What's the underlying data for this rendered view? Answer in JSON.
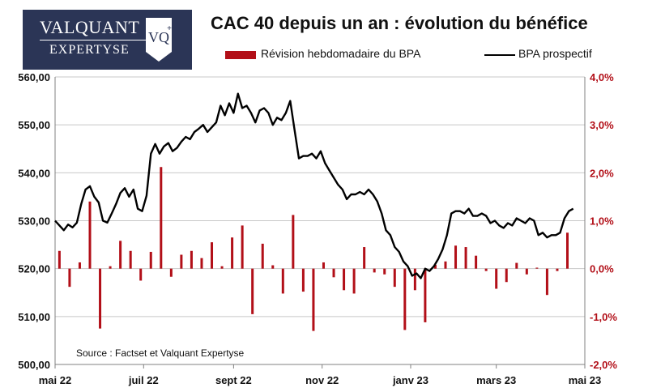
{
  "logo": {
    "line1": "VALQUANT",
    "line2": "EXPERTYSE",
    "mark": "VQ+"
  },
  "chart_data": {
    "type": "bar+line",
    "title": "CAC 40 depuis un an : évolution du bénéfice",
    "legend": [
      {
        "label": "Révision hebdomadaire du BPA",
        "color": "#b20f18",
        "kind": "bar"
      },
      {
        "label": "BPA prospectif",
        "color": "#000000",
        "kind": "line"
      }
    ],
    "legend_position": "top",
    "source": "Source : Factset et Valquant Expertyse",
    "x_range": [
      "2022-05-01",
      "2023-05-01"
    ],
    "x_ticks": [
      {
        "label": "mai 22",
        "date": "2022-05-01"
      },
      {
        "label": "juil 22",
        "date": "2022-07-01"
      },
      {
        "label": "sept 22",
        "date": "2022-09-01"
      },
      {
        "label": "nov 22",
        "date": "2022-11-01"
      },
      {
        "label": "janv 23",
        "date": "2023-01-01"
      },
      {
        "label": "mars 23",
        "date": "2023-03-01"
      },
      {
        "label": "mai 23",
        "date": "2023-05-01"
      }
    ],
    "y_left": {
      "min": 500,
      "max": 560,
      "ticks": [
        "500,00",
        "510,00",
        "520,00",
        "530,00",
        "540,00",
        "550,00",
        "560,00"
      ]
    },
    "y_right": {
      "min": -2.0,
      "max": 4.0,
      "ticks": [
        "-2,0%",
        "-1,0%",
        "0,0%",
        "1,0%",
        "2,0%",
        "3,0%",
        "4,0%"
      ],
      "color": "#b20f18"
    },
    "grid": "horizontal",
    "bars": [
      [
        "2022-05-04",
        0.37
      ],
      [
        "2022-05-11",
        -0.38
      ],
      [
        "2022-05-18",
        0.13
      ],
      [
        "2022-05-25",
        1.4
      ],
      [
        "2022-06-01",
        -1.25
      ],
      [
        "2022-06-08",
        0.05
      ],
      [
        "2022-06-15",
        0.58
      ],
      [
        "2022-06-22",
        0.37
      ],
      [
        "2022-06-29",
        -0.25
      ],
      [
        "2022-07-06",
        0.35
      ],
      [
        "2022-07-13",
        2.12
      ],
      [
        "2022-07-20",
        -0.17
      ],
      [
        "2022-07-27",
        0.29
      ],
      [
        "2022-08-03",
        0.37
      ],
      [
        "2022-08-10",
        0.22
      ],
      [
        "2022-08-17",
        0.55
      ],
      [
        "2022-08-24",
        0.05
      ],
      [
        "2022-08-31",
        0.65
      ],
      [
        "2022-09-07",
        0.9
      ],
      [
        "2022-09-14",
        -0.95
      ],
      [
        "2022-09-21",
        0.52
      ],
      [
        "2022-09-28",
        0.07
      ],
      [
        "2022-10-05",
        -0.52
      ],
      [
        "2022-10-12",
        1.12
      ],
      [
        "2022-10-19",
        -0.48
      ],
      [
        "2022-10-26",
        -1.3
      ],
      [
        "2022-11-02",
        0.13
      ],
      [
        "2022-11-09",
        -0.18
      ],
      [
        "2022-11-16",
        -0.45
      ],
      [
        "2022-11-23",
        -0.52
      ],
      [
        "2022-11-30",
        0.45
      ],
      [
        "2022-12-07",
        -0.08
      ],
      [
        "2022-12-14",
        -0.12
      ],
      [
        "2022-12-21",
        -0.38
      ],
      [
        "2022-12-28",
        -1.28
      ],
      [
        "2023-01-04",
        -0.45
      ],
      [
        "2023-01-11",
        -1.12
      ],
      [
        "2023-01-18",
        0.08
      ],
      [
        "2023-01-25",
        0.15
      ],
      [
        "2023-02-01",
        0.48
      ],
      [
        "2023-02-08",
        0.45
      ],
      [
        "2023-02-15",
        0.27
      ],
      [
        "2023-02-22",
        -0.05
      ],
      [
        "2023-03-01",
        -0.42
      ],
      [
        "2023-03-08",
        -0.28
      ],
      [
        "2023-03-15",
        0.12
      ],
      [
        "2023-03-22",
        -0.12
      ],
      [
        "2023-03-29",
        0.02
      ],
      [
        "2023-04-05",
        -0.55
      ],
      [
        "2023-04-12",
        -0.05
      ],
      [
        "2023-04-19",
        0.75
      ]
    ],
    "line": [
      [
        "2022-05-01",
        530.0
      ],
      [
        "2022-05-04",
        529.0
      ],
      [
        "2022-05-07",
        528.0
      ],
      [
        "2022-05-10",
        529.2
      ],
      [
        "2022-05-13",
        528.6
      ],
      [
        "2022-05-16",
        529.6
      ],
      [
        "2022-05-19",
        533.5
      ],
      [
        "2022-05-22",
        536.5
      ],
      [
        "2022-05-25",
        537.2
      ],
      [
        "2022-05-28",
        535.0
      ],
      [
        "2022-05-31",
        533.8
      ],
      [
        "2022-06-03",
        530.0
      ],
      [
        "2022-06-06",
        529.6
      ],
      [
        "2022-06-09",
        531.5
      ],
      [
        "2022-06-12",
        533.5
      ],
      [
        "2022-06-15",
        535.8
      ],
      [
        "2022-06-18",
        536.8
      ],
      [
        "2022-06-21",
        535.0
      ],
      [
        "2022-06-24",
        536.5
      ],
      [
        "2022-06-27",
        532.5
      ],
      [
        "2022-06-30",
        532.0
      ],
      [
        "2022-07-03",
        535.2
      ],
      [
        "2022-07-06",
        544.0
      ],
      [
        "2022-07-09",
        546.0
      ],
      [
        "2022-07-12",
        544.0
      ],
      [
        "2022-07-15",
        545.5
      ],
      [
        "2022-07-18",
        546.2
      ],
      [
        "2022-07-21",
        544.5
      ],
      [
        "2022-07-24",
        545.2
      ],
      [
        "2022-07-27",
        546.5
      ],
      [
        "2022-07-30",
        547.5
      ],
      [
        "2022-08-02",
        547.0
      ],
      [
        "2022-08-05",
        548.5
      ],
      [
        "2022-08-08",
        549.2
      ],
      [
        "2022-08-11",
        550.0
      ],
      [
        "2022-08-14",
        548.5
      ],
      [
        "2022-08-17",
        549.5
      ],
      [
        "2022-08-20",
        550.5
      ],
      [
        "2022-08-23",
        554.0
      ],
      [
        "2022-08-26",
        552.0
      ],
      [
        "2022-08-29",
        554.5
      ],
      [
        "2022-09-01",
        552.5
      ],
      [
        "2022-09-04",
        556.5
      ],
      [
        "2022-09-07",
        553.5
      ],
      [
        "2022-09-10",
        554.0
      ],
      [
        "2022-09-13",
        552.5
      ],
      [
        "2022-09-16",
        550.5
      ],
      [
        "2022-09-19",
        553.0
      ],
      [
        "2022-09-22",
        553.5
      ],
      [
        "2022-09-25",
        552.5
      ],
      [
        "2022-09-28",
        550.0
      ],
      [
        "2022-10-01",
        551.5
      ],
      [
        "2022-10-04",
        551.0
      ],
      [
        "2022-10-07",
        552.5
      ],
      [
        "2022-10-10",
        555.0
      ],
      [
        "2022-10-13",
        549.0
      ],
      [
        "2022-10-16",
        543.0
      ],
      [
        "2022-10-19",
        543.5
      ],
      [
        "2022-10-22",
        543.5
      ],
      [
        "2022-10-25",
        544.0
      ],
      [
        "2022-10-28",
        543.0
      ],
      [
        "2022-10-31",
        544.5
      ],
      [
        "2022-11-03",
        542.0
      ],
      [
        "2022-11-06",
        540.5
      ],
      [
        "2022-11-09",
        539.0
      ],
      [
        "2022-11-12",
        537.5
      ],
      [
        "2022-11-15",
        536.5
      ],
      [
        "2022-11-18",
        534.5
      ],
      [
        "2022-11-21",
        535.5
      ],
      [
        "2022-11-24",
        535.5
      ],
      [
        "2022-11-27",
        536.0
      ],
      [
        "2022-11-30",
        535.5
      ],
      [
        "2022-12-03",
        536.5
      ],
      [
        "2022-12-06",
        535.5
      ],
      [
        "2022-12-09",
        534.0
      ],
      [
        "2022-12-12",
        531.5
      ],
      [
        "2022-12-15",
        528.0
      ],
      [
        "2022-12-18",
        527.0
      ],
      [
        "2022-12-21",
        524.5
      ],
      [
        "2022-12-24",
        523.5
      ],
      [
        "2022-12-27",
        521.5
      ],
      [
        "2022-12-30",
        520.5
      ],
      [
        "2023-01-02",
        518.5
      ],
      [
        "2023-01-05",
        519.0
      ],
      [
        "2023-01-08",
        518.0
      ],
      [
        "2023-01-11",
        520.0
      ],
      [
        "2023-01-14",
        519.5
      ],
      [
        "2023-01-17",
        520.5
      ],
      [
        "2023-01-20",
        522.0
      ],
      [
        "2023-01-23",
        524.0
      ],
      [
        "2023-01-26",
        527.0
      ],
      [
        "2023-01-29",
        531.5
      ],
      [
        "2023-02-01",
        532.0
      ],
      [
        "2023-02-04",
        532.0
      ],
      [
        "2023-02-07",
        531.5
      ],
      [
        "2023-02-10",
        532.5
      ],
      [
        "2023-02-13",
        531.0
      ],
      [
        "2023-02-16",
        531.0
      ],
      [
        "2023-02-19",
        531.5
      ],
      [
        "2023-02-22",
        531.0
      ],
      [
        "2023-02-25",
        529.5
      ],
      [
        "2023-02-28",
        530.0
      ],
      [
        "2023-03-03",
        529.0
      ],
      [
        "2023-03-06",
        528.5
      ],
      [
        "2023-03-09",
        529.5
      ],
      [
        "2023-03-12",
        529.0
      ],
      [
        "2023-03-15",
        530.5
      ],
      [
        "2023-03-18",
        530.0
      ],
      [
        "2023-03-21",
        529.5
      ],
      [
        "2023-03-24",
        530.5
      ],
      [
        "2023-03-27",
        530.0
      ],
      [
        "2023-03-30",
        527.0
      ],
      [
        "2023-04-02",
        527.5
      ],
      [
        "2023-04-05",
        526.5
      ],
      [
        "2023-04-08",
        527.0
      ],
      [
        "2023-04-11",
        527.0
      ],
      [
        "2023-04-14",
        527.5
      ],
      [
        "2023-04-17",
        530.5
      ],
      [
        "2023-04-20",
        532.0
      ],
      [
        "2023-04-23",
        532.5
      ]
    ]
  }
}
